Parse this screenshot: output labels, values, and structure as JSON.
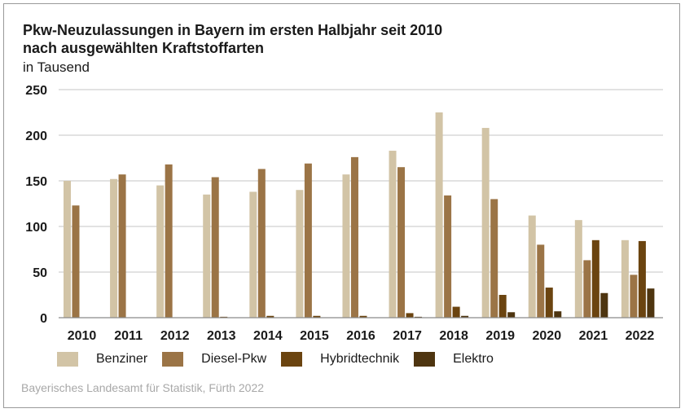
{
  "chart_data": {
    "type": "bar",
    "title": "Pkw-Neuzulassungen in Bayern im ersten Halbjahr seit 2010",
    "subtitle": "nach ausgewählten Kraftstoffarten",
    "ylabel": "in Tausend",
    "xlabel": "",
    "ylim": [
      0,
      250
    ],
    "yticks": [
      0,
      50,
      100,
      150,
      200,
      250
    ],
    "grid": true,
    "legend_position": "bottom",
    "categories": [
      "2010",
      "2011",
      "2012",
      "2013",
      "2014",
      "2015",
      "2016",
      "2017",
      "2018",
      "2019",
      "2020",
      "2021",
      "2022"
    ],
    "series": [
      {
        "name": "Benziner",
        "color": "#d2c4a6",
        "values": [
          150,
          152,
          145,
          135,
          138,
          140,
          157,
          183,
          225,
          208,
          112,
          107,
          85
        ]
      },
      {
        "name": "Diesel-Pkw",
        "color": "#9b7446",
        "values": [
          123,
          157,
          168,
          154,
          163,
          169,
          176,
          165,
          134,
          130,
          80,
          63,
          47
        ]
      },
      {
        "name": "Hybridtechnik",
        "color": "#6b4410",
        "values": [
          0,
          0,
          0,
          1,
          2,
          2,
          2,
          5,
          12,
          25,
          33,
          85,
          84
        ]
      },
      {
        "name": "Elektro",
        "color": "#4e3510",
        "values": [
          0,
          0,
          0,
          0,
          0,
          0,
          0,
          1,
          2,
          6,
          7,
          27,
          32
        ]
      }
    ],
    "source": "Bayerisches Landesamt für Statistik, Fürth 2022"
  }
}
